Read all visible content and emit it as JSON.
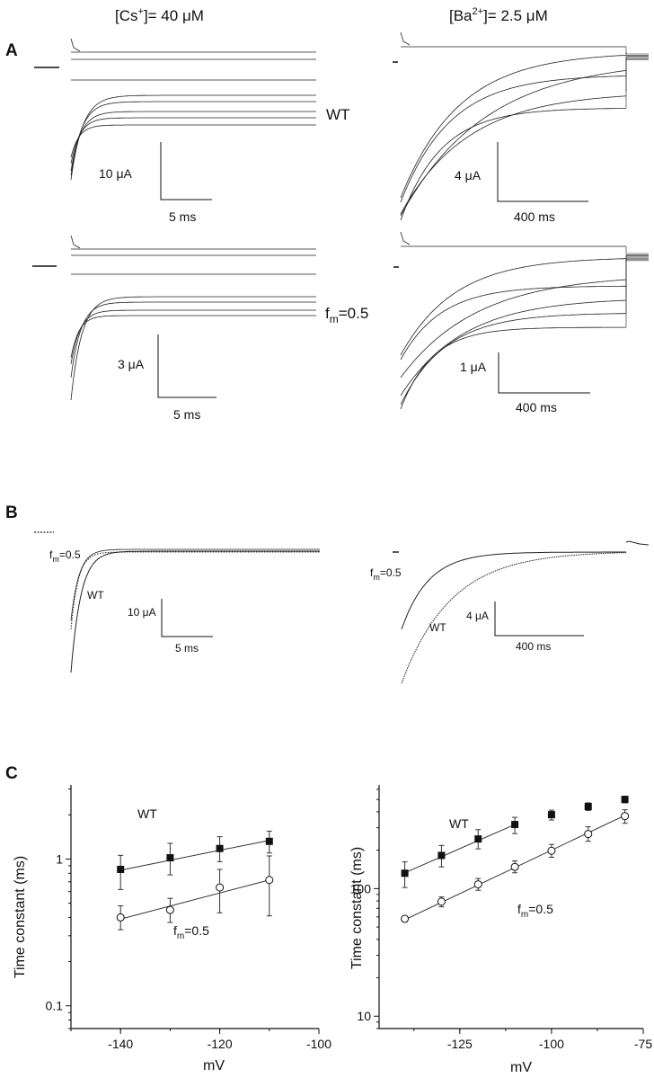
{
  "headers": {
    "left_main": "[Cs",
    "left_sup": "+",
    "left_tail": "]= 40 μM",
    "right_main": "[Ba",
    "right_sup": "2+",
    "right_tail": "]= 2.5 μM"
  },
  "panels": {
    "a": "A",
    "b": "B",
    "c": "C"
  },
  "panel_a": {
    "label_wt": "WT",
    "label_fm_f": "f",
    "label_fm_sub": "m",
    "label_fm_tail": "=0.5",
    "scalebars": [
      {
        "current": "10 μA",
        "time": "5 ms"
      },
      {
        "current": "4 μA",
        "time": "400 ms"
      },
      {
        "current": "3 μA",
        "time": "5 ms"
      },
      {
        "current": "1 μA",
        "time": "400 ms"
      }
    ]
  },
  "panel_b": {
    "left_fm_f": "f",
    "left_fm_sub": "m",
    "left_fm_tail": "=0.5",
    "left_wt": "WT",
    "left_scale_current": "10 μA",
    "left_scale_time": "5 ms",
    "right_fm_f": "f",
    "right_fm_sub": "m",
    "right_fm_tail": "=0.5",
    "right_wt": "WT",
    "right_scale_current": "4 μA",
    "right_scale_time": "400 ms"
  },
  "chart_data": [
    {
      "type": "scatter",
      "panel": "C-left",
      "xlabel": "mV",
      "ylabel": "Time constant (ms)",
      "yscale": "log",
      "xlim": [
        -150,
        -100
      ],
      "ylim": [
        0.07,
        3.2
      ],
      "x_ticks": [
        -140,
        -120,
        -100
      ],
      "y_ticks": [
        0.1,
        1
      ],
      "y_tick_labels": [
        "0.1",
        "1"
      ],
      "series": [
        {
          "name": "WT",
          "marker": "filled-square",
          "x": [
            -140,
            -130,
            -120,
            -110
          ],
          "y": [
            0.85,
            1.02,
            1.18,
            1.32
          ],
          "err": [
            [
              0.62,
              1.06
            ],
            [
              0.78,
              1.28
            ],
            [
              0.96,
              1.42
            ],
            [
              1.1,
              1.55
            ]
          ],
          "fit": [
            [
              -140,
              0.84
            ],
            [
              -110,
              1.34
            ]
          ]
        },
        {
          "name": "f_m=0.5",
          "marker": "open-circle",
          "x": [
            -140,
            -130,
            -120,
            -110
          ],
          "y": [
            0.4,
            0.45,
            0.64,
            0.72
          ],
          "err": [
            [
              0.33,
              0.48
            ],
            [
              0.37,
              0.54
            ],
            [
              0.43,
              0.85
            ],
            [
              0.41,
              1.05
            ]
          ],
          "fit": [
            [
              -140,
              0.39
            ],
            [
              -110,
              0.72
            ]
          ]
        }
      ],
      "annotations": {
        "wt": "WT",
        "fm_f": "f",
        "fm_sub": "m",
        "fm_tail": "=0.5"
      }
    },
    {
      "type": "scatter",
      "panel": "C-right",
      "xlabel": "mV",
      "ylabel": "Time constant (ms)",
      "yscale": "log",
      "xlim": [
        -147,
        -75
      ],
      "ylim": [
        8,
        650
      ],
      "x_ticks": [
        -125,
        -100,
        -75
      ],
      "y_ticks": [
        10,
        100
      ],
      "y_tick_labels": [
        "10",
        "100"
      ],
      "series": [
        {
          "name": "WT",
          "marker": "filled-square",
          "x": [
            -140,
            -130,
            -120,
            -110,
            -100,
            -90,
            -80
          ],
          "y": [
            132,
            182,
            245,
            318,
            380,
            440,
            500
          ],
          "err": [
            [
              102,
              162
            ],
            [
              148,
              218
            ],
            [
              205,
              290
            ],
            [
              270,
              362
            ],
            [
              345,
              412
            ],
            [
              410,
              470
            ],
            [
              470,
              530
            ]
          ],
          "fit": [
            [
              -140,
              133
            ],
            [
              -110,
              318
            ]
          ]
        },
        {
          "name": "f_m=0.5",
          "marker": "open-circle",
          "x": [
            -140,
            -130,
            -120,
            -110,
            -100,
            -90,
            -80
          ],
          "y": [
            58,
            79,
            108,
            148,
            198,
            268,
            370
          ],
          "err": [
            [
              55,
              61
            ],
            [
              72,
              86
            ],
            [
              97,
              120
            ],
            [
              133,
              165
            ],
            [
              176,
              222
            ],
            [
              235,
              305
            ],
            [
              325,
              415
            ]
          ],
          "fit": [
            [
              -140,
              57
            ],
            [
              -80,
              375
            ]
          ]
        }
      ],
      "annotations": {
        "wt": "WT",
        "fm_f": "f",
        "fm_sub": "m",
        "fm_tail": "=0.5"
      }
    }
  ]
}
